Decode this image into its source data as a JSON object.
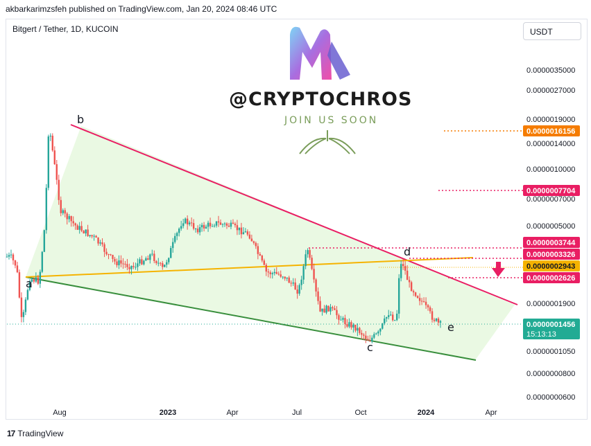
{
  "header": {
    "published_caption": "akbarkarimzsfeh published on TradingView.com, Jan 20, 2024 08:46 UTC",
    "symbol_line": "Bitgert / Tether, 1D, KUCOIN",
    "currency_button": "USDT"
  },
  "footer": {
    "brand_icon": "17",
    "brand_label": "TradingView"
  },
  "watermark": {
    "handle": "@CRYPTOCHROS",
    "subtitle": "JOIN US SOON"
  },
  "wave_labels": [
    "a",
    "b",
    "c",
    "d",
    "e"
  ],
  "chart_data": {
    "type": "line",
    "title": "Bitgert / Tether, 1D, KUCOIN",
    "xlabel": "",
    "ylabel": "",
    "y_scale": "log",
    "ylim": [
      5e-08,
      9e-08
    ],
    "x_tick_labels": [
      "Aug",
      "2023",
      "Apr",
      "Jul",
      "Oct",
      "2024",
      "Apr"
    ],
    "y_tick_labels": [
      "0.0000035000",
      "0.0000027000",
      "0.0000019000",
      "0.0000014000",
      "0.0000010000",
      "0.0000007000",
      "0.0000005000",
      "0.0000001900",
      "0.0000001050",
      "0.0000000800",
      "0.0000000600"
    ],
    "price_levels": [
      {
        "label": "0.0000016156",
        "color": "#f57c00",
        "style": "dotted"
      },
      {
        "label": "0.0000007704",
        "color": "#e91e63",
        "style": "dotted"
      },
      {
        "label": "0.0000003744",
        "color": "#e91e63",
        "style": "dotted"
      },
      {
        "label": "0.0000003326",
        "color": "#e91e63",
        "style": "dotted"
      },
      {
        "label": "0.0000002943",
        "color": "#f5b300",
        "style": "solid"
      },
      {
        "label": "0.0000002626",
        "color": "#e91e63",
        "style": "dotted"
      }
    ],
    "last_price": {
      "label": "0.0000001456",
      "countdown": "15:13:13",
      "color": "#22ab94"
    },
    "series": [
      {
        "x": [
          "2022-06-20",
          "2022-06-28",
          "2022-07-05",
          "2022-07-15",
          "2022-07-28",
          "2022-08-05",
          "2022-08-10",
          "2022-08-16",
          "2022-08-26",
          "2022-09-15",
          "2022-10-10",
          "2022-11-05",
          "2022-12-01",
          "2022-12-25",
          "2023-01-10",
          "2023-02-05",
          "2023-02-25",
          "2023-03-20",
          "2023-04-10",
          "2023-05-05",
          "2023-05-28",
          "2023-06-20",
          "2023-07-10",
          "2023-07-22",
          "2023-08-01",
          "2023-08-08",
          "2023-08-20",
          "2023-09-10",
          "2023-09-25",
          "2023-10-12",
          "2023-10-25",
          "2023-11-08",
          "2023-11-18",
          "2023-11-22",
          "2023-11-26",
          "2023-12-05",
          "2023-12-20",
          "2024-01-05",
          "2024-01-15"
        ],
        "y": [
          3.4e-07,
          3e-07,
          1.45e-07,
          2.6e-07,
          2.5e-07,
          5.2e-07,
          1.8e-06,
          1.2e-06,
          6e-07,
          5e-07,
          4.3e-07,
          3.2e-07,
          3e-07,
          3.5e-07,
          2.9e-07,
          5.4e-07,
          4.8e-07,
          5.2e-07,
          5e-07,
          4.5e-07,
          2.8e-07,
          2.7e-07,
          2.2e-07,
          3.8e-07,
          2.3e-07,
          1.7e-07,
          1.8e-07,
          1.5e-07,
          1.4e-07,
          1.2e-07,
          1.3e-07,
          1.7e-07,
          1.5e-07,
          2.9e-07,
          3.2e-07,
          2.4e-07,
          2e-07,
          1.6e-07,
          1.456e-07
        ]
      }
    ],
    "grid": false,
    "legend": "none"
  },
  "colors": {
    "resistance_line": "#e91e63",
    "support_line": "#388e3c",
    "yellow_line": "#f5b300",
    "up_candle": "#26a69a",
    "down_candle": "#ef5350",
    "triangle_fill": "#e8f8e0"
  }
}
